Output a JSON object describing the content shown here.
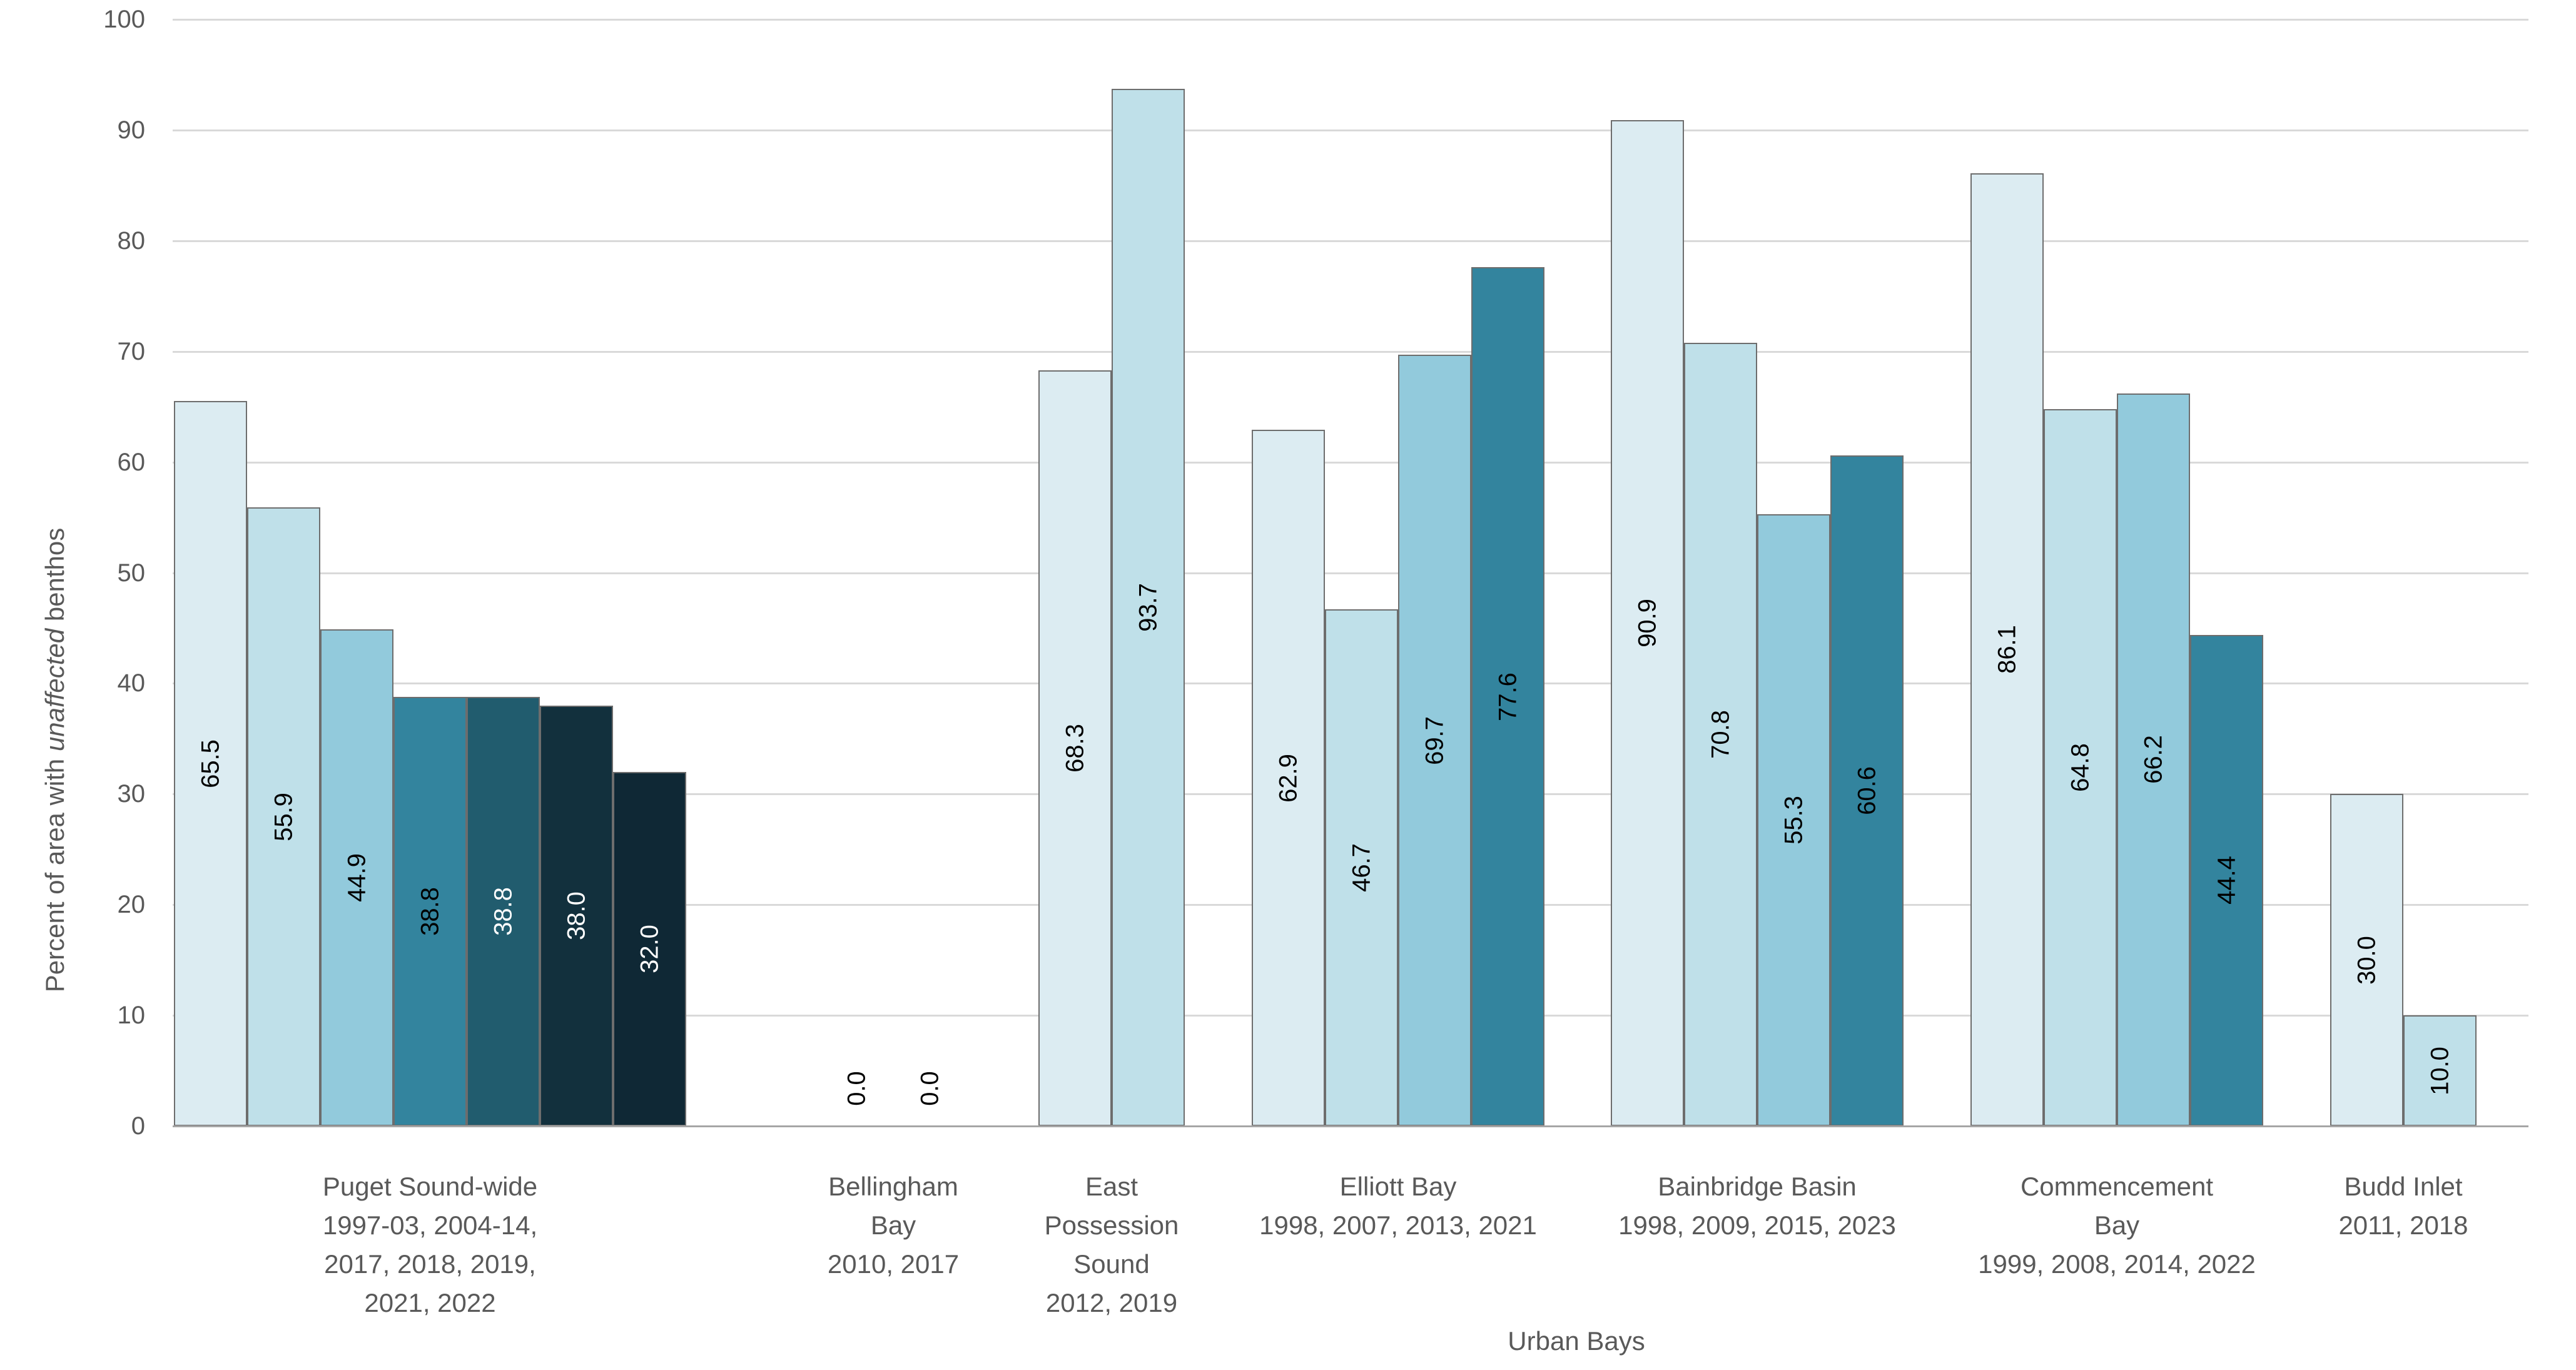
{
  "chart_data": {
    "type": "bar",
    "title": "",
    "xlabel": "Urban Bays",
    "ylabel": {
      "prefix": "Percent of area with ",
      "italic": "unaffected",
      "suffix": " benthos"
    },
    "ylabel_full": "Percent of area with unaffected benthos",
    "ylim": [
      0,
      100
    ],
    "yticks": [
      0,
      10,
      20,
      30,
      40,
      50,
      60,
      70,
      80,
      90,
      100
    ],
    "grid": true,
    "legend": false,
    "value_label_decimals": 1,
    "colors": {
      "palette": [
        "#dcecf2",
        "#bfe0e9",
        "#92cadc",
        "#33849e",
        "#215c6e",
        "#12303d",
        "#0f2835"
      ],
      "value_label_dark": "#000000",
      "value_label_light": "#ffffff",
      "axis_text": "#595959",
      "gridline": "#d9d9d9",
      "axis_line": "#a6a6a6",
      "bar_border": "#6d6d6d",
      "background": "#ffffff"
    },
    "groups": [
      {
        "name": "Puget Sound-wide",
        "label_lines": [
          "Puget Sound-wide",
          "1997-03, 2004-14,",
          "2017, 2018, 2019,",
          "2021, 2022"
        ],
        "values": [
          65.5,
          55.9,
          44.9,
          38.8,
          38.8,
          38.0,
          32.0
        ],
        "color_indices": [
          0,
          1,
          2,
          3,
          4,
          5,
          6
        ],
        "value_text": [
          "dark",
          "dark",
          "dark",
          "dark",
          "light",
          "light",
          "light"
        ]
      },
      {
        "name": "Bellingham Bay",
        "label_lines": [
          "Bellingham",
          "Bay",
          "2010, 2017"
        ],
        "values": [
          0.0,
          0.0
        ],
        "color_indices": [
          0,
          1
        ],
        "value_text": [
          "dark",
          "dark"
        ]
      },
      {
        "name": "East Possession Sound",
        "label_lines": [
          "East",
          "Possession",
          "Sound",
          "2012, 2019"
        ],
        "values": [
          68.3,
          93.7
        ],
        "color_indices": [
          0,
          1
        ],
        "value_text": [
          "dark",
          "dark"
        ]
      },
      {
        "name": "Elliott Bay",
        "label_lines": [
          "Elliott Bay",
          "1998, 2007, 2013, 2021"
        ],
        "values": [
          62.9,
          46.7,
          69.7,
          77.6
        ],
        "color_indices": [
          0,
          1,
          2,
          3
        ],
        "value_text": [
          "dark",
          "dark",
          "dark",
          "dark"
        ]
      },
      {
        "name": "Bainbridge Basin",
        "label_lines": [
          "Bainbridge Basin",
          "1998, 2009, 2015, 2023"
        ],
        "values": [
          90.9,
          70.8,
          55.3,
          60.6
        ],
        "color_indices": [
          0,
          1,
          2,
          3
        ],
        "value_text": [
          "dark",
          "dark",
          "dark",
          "dark"
        ]
      },
      {
        "name": "Commencement Bay",
        "label_lines": [
          "Commencement",
          "Bay",
          "1999, 2008, 2014, 2022"
        ],
        "values": [
          86.1,
          64.8,
          66.2,
          44.4
        ],
        "color_indices": [
          0,
          1,
          2,
          3
        ],
        "value_text": [
          "dark",
          "dark",
          "dark",
          "dark"
        ]
      },
      {
        "name": "Budd Inlet",
        "label_lines": [
          "Budd Inlet",
          "2011, 2018"
        ],
        "values": [
          30.0,
          10.0
        ],
        "color_indices": [
          0,
          1
        ],
        "value_text": [
          "dark",
          "dark"
        ]
      }
    ]
  }
}
